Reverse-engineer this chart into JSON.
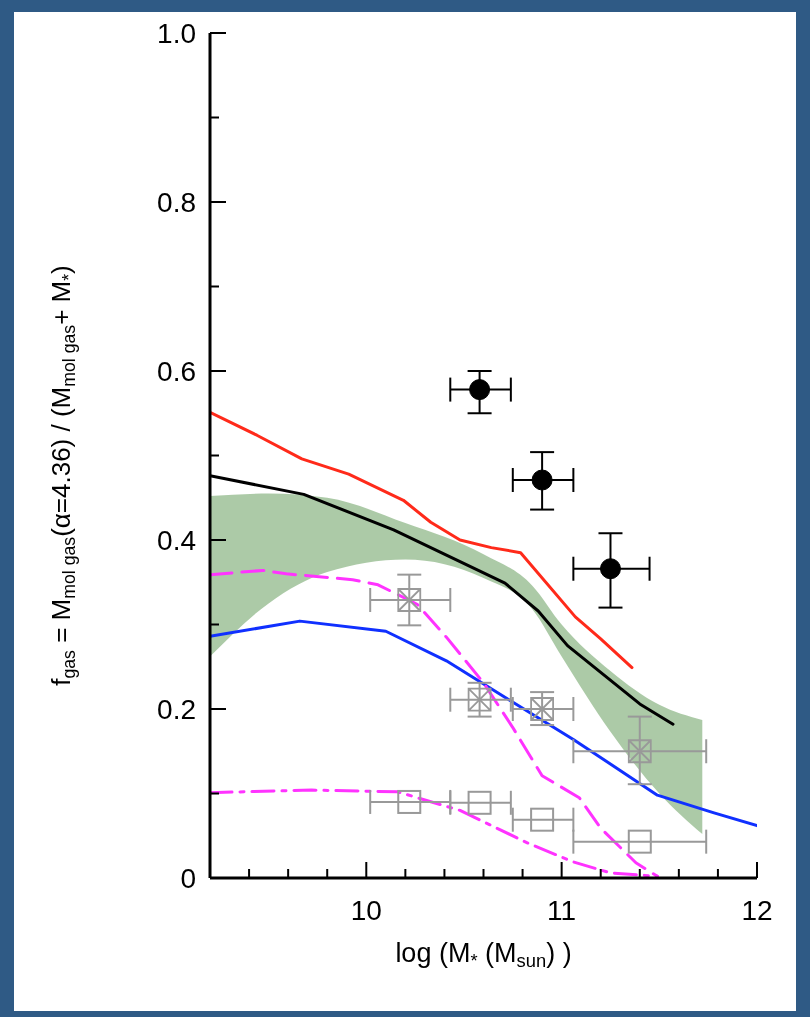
{
  "chart_data": {
    "type": "line",
    "xlabel": "log (M$_{*}$ (M$_{sun}$) )",
    "ylabel": "f$_{gas}$ = M$_{mol gas}$(α=4.36) / (M$_{mol gas}$+ M$_{*}$)",
    "xlim": [
      9.2,
      12
    ],
    "xticks": [
      {
        "value": 9.4,
        "label": null
      },
      {
        "value": 9.6,
        "label": null
      },
      {
        "value": 9.8,
        "label": null
      },
      10,
      {
        "value": 10.2,
        "label": null
      },
      {
        "value": 10.4,
        "label": null
      },
      {
        "value": 10.6,
        "label": null
      },
      {
        "value": 10.8,
        "label": null
      },
      11,
      {
        "value": 11.2,
        "label": null
      },
      {
        "value": 11.4,
        "label": null
      },
      {
        "value": 11.6,
        "label": null
      },
      {
        "value": 11.8,
        "label": null
      },
      12
    ],
    "ylim": [
      0,
      1
    ],
    "yticks": [
      0,
      {
        "value": 0.1,
        "label": null
      },
      0.2,
      {
        "value": 0.3,
        "label": null
      },
      0.4,
      {
        "value": 0.5,
        "label": null
      },
      0.6,
      {
        "value": 0.7,
        "label": null
      },
      0.8,
      {
        "value": 0.9,
        "label": null
      },
      {
        "value": 1,
        "label": "1.0"
      }
    ],
    "series": [
      {
        "type": "area",
        "color": "#7fae78",
        "x": [
          9.2,
          9.5,
          9.8,
          10.2,
          10.6,
          10.85,
          11.0,
          11.25,
          11.5,
          11.72
        ],
        "values": [
          null,
          null,
          null,
          null,
          null,
          null,
          null,
          null,
          null,
          null
        ],
        "lower": [
          0.262,
          0.325,
          0.362,
          0.377,
          0.355,
          0.318,
          0.262,
          0.173,
          0.1,
          0.052
        ],
        "upper": [
          0.452,
          0.455,
          0.45,
          0.42,
          0.383,
          0.346,
          0.3,
          0.245,
          0.205,
          0.187
        ]
      },
      {
        "color": "#ff2a1a",
        "line_style": "solid",
        "x": [
          9.2,
          9.44,
          9.67,
          9.91,
          10.19,
          10.33,
          10.48,
          10.64,
          10.79,
          11.07,
          11.2,
          11.36
        ],
        "values": [
          0.551,
          0.524,
          0.496,
          0.478,
          0.447,
          0.421,
          0.4,
          0.391,
          0.385,
          0.309,
          0.283,
          0.249
        ]
      },
      {
        "color": "#000000",
        "line_style": "solid",
        "x": [
          9.2,
          9.68,
          10.14,
          10.71,
          10.88,
          11.03,
          11.4,
          11.57
        ],
        "values": [
          0.476,
          0.454,
          0.412,
          0.349,
          0.316,
          0.275,
          0.206,
          0.182
        ]
      },
      {
        "color": "#1030ff",
        "line_style": "solid",
        "x": [
          9.2,
          9.66,
          10.1,
          10.41,
          10.73,
          11.06,
          11.49,
          11.78,
          12.0
        ],
        "values": [
          0.286,
          0.304,
          0.292,
          0.257,
          0.211,
          0.164,
          0.098,
          0.077,
          0.062
        ]
      },
      {
        "color": "#ff33ff",
        "line_style": "dashed",
        "x": [
          9.2,
          9.47,
          9.59,
          9.93,
          10.06,
          10.26,
          10.41,
          10.6,
          10.75,
          10.9,
          11.09,
          11.2,
          11.38,
          11.49
        ],
        "values": [
          0.359,
          0.364,
          0.36,
          0.353,
          0.347,
          0.324,
          0.285,
          0.231,
          0.178,
          0.121,
          0.095,
          0.059,
          0.018,
          0.002
        ]
      },
      {
        "color": "#ff33ff",
        "line_style": "dashdot",
        "x": [
          9.2,
          9.72,
          10.16,
          10.48,
          10.83,
          11.06,
          11.25,
          11.49
        ],
        "values": [
          0.101,
          0.104,
          0.102,
          0.08,
          0.041,
          0.019,
          0.006,
          0.002
        ]
      },
      {
        "type": "scatter",
        "color": "#000000",
        "marker": "circle",
        "x": [
          10.58,
          10.9,
          11.25
        ],
        "values": [
          0.578,
          0.471,
          0.366
        ],
        "errors": [
          [
            0.55,
            0.6
          ],
          [
            0.436,
            0.504
          ],
          [
            0.32,
            0.408
          ]
        ],
        "xerrors": [
          [
            10.43,
            10.74
          ],
          [
            10.75,
            11.06
          ],
          [
            11.06,
            11.45
          ]
        ]
      },
      {
        "type": "scatter",
        "color": "#999999",
        "marker": "cross",
        "x": [
          10.22,
          10.58,
          10.9,
          11.4
        ],
        "values": [
          0.329,
          0.211,
          0.2,
          0.15
        ],
        "errors": [
          [
            0.299,
            0.359
          ],
          [
            0.191,
            0.231
          ],
          [
            0.181,
            0.22
          ],
          [
            0.111,
            0.191
          ]
        ],
        "xerrors": [
          [
            10.02,
            10.43
          ],
          [
            10.43,
            10.74
          ],
          [
            10.75,
            11.06
          ],
          [
            11.06,
            11.74
          ]
        ]
      },
      {
        "type": "scatter",
        "color": "#999999",
        "marker": "square",
        "x": [
          10.22,
          10.58,
          10.9,
          11.4
        ],
        "values": [
          0.09,
          0.089,
          0.069,
          0.043
        ],
        "xerrors": [
          [
            10.02,
            10.43
          ],
          [
            10.43,
            10.74
          ],
          [
            10.75,
            11.06
          ],
          [
            11.06,
            11.74
          ]
        ]
      }
    ]
  }
}
